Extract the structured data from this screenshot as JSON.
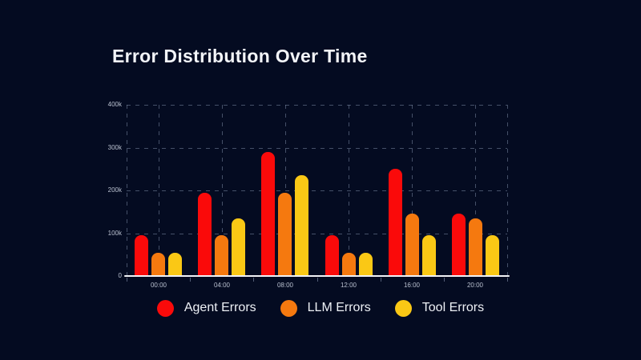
{
  "title": "Error Distribution Over Time",
  "theme": {
    "background": "#040B21",
    "title_color": "#F3F5F9",
    "axis_line_color": "#F1F3F7",
    "grid_color": "rgba(148,163,190,0.45)",
    "tick_label_color": "#B9C0CF",
    "legend_text_color": "#EEF1F6"
  },
  "chart_data": {
    "type": "bar",
    "title": "Error Distribution Over Time",
    "categories": [
      "00:00",
      "04:00",
      "08:00",
      "12:00",
      "16:00",
      "20:00"
    ],
    "series": [
      {
        "name": "Agent Errors",
        "color": "#FA0A0A",
        "values": [
          95000,
          195000,
          290000,
          95000,
          250000,
          145000
        ]
      },
      {
        "name": "LLM Errors",
        "color": "#F5790F",
        "values": [
          55000,
          95000,
          195000,
          55000,
          145000,
          135000
        ]
      },
      {
        "name": "Tool Errors",
        "color": "#FAC815",
        "values": [
          55000,
          135000,
          235000,
          55000,
          95000,
          95000
        ]
      }
    ],
    "xlabel": "",
    "ylabel": "",
    "ylim": [
      0,
      400000
    ],
    "ytick_step": 100000,
    "ytick_labels": [
      "0",
      "100k",
      "200k",
      "300k",
      "400k"
    ],
    "grid": "dashed",
    "legend_position": "bottom"
  }
}
